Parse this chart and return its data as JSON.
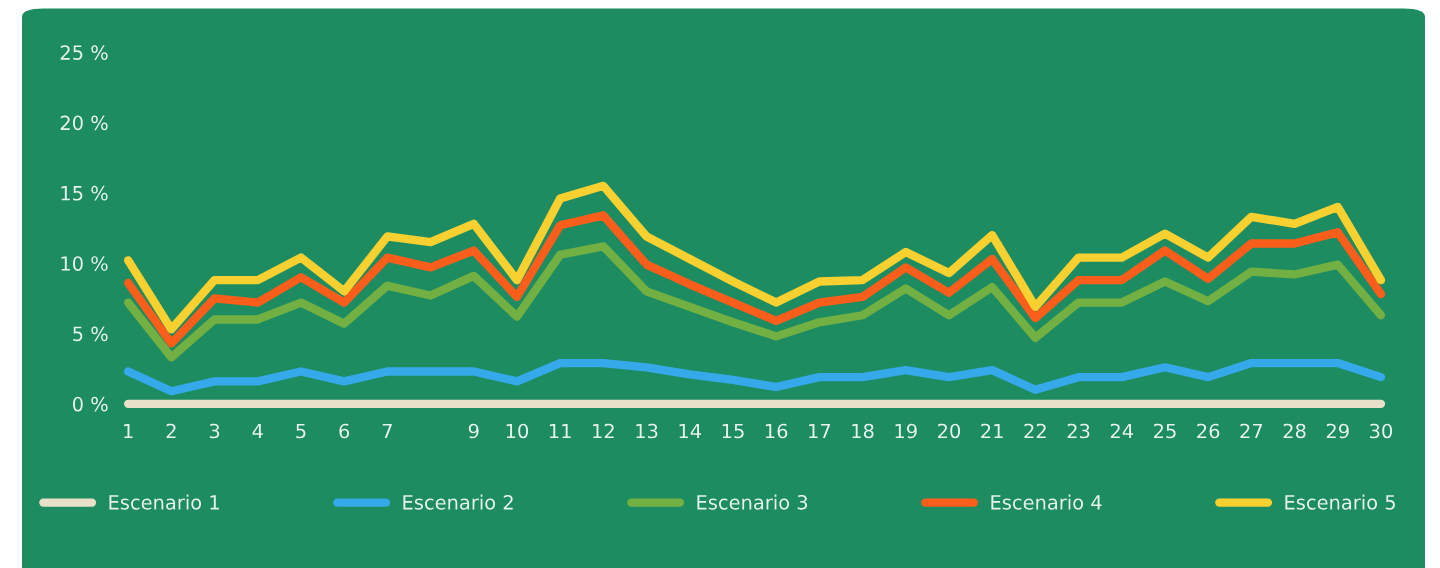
{
  "chart_data": {
    "type": "line",
    "x": [
      1,
      2,
      3,
      4,
      5,
      6,
      7,
      8,
      9,
      10,
      11,
      12,
      13,
      14,
      15,
      16,
      17,
      18,
      19,
      20,
      21,
      22,
      23,
      24,
      25,
      26,
      27,
      28,
      29,
      30
    ],
    "series": [
      {
        "name": "Escenario 1",
        "color": "#e8e0c8",
        "values": [
          0,
          0,
          0,
          0,
          0,
          0,
          0,
          0,
          0,
          0,
          0,
          0,
          0,
          0,
          0,
          0,
          0,
          0,
          0,
          0,
          0,
          0,
          0,
          0,
          0,
          0,
          0,
          0,
          0,
          0
        ]
      },
      {
        "name": "Escenario 2",
        "color": "#36a9ea",
        "values": [
          2.3,
          0.9,
          1.6,
          1.6,
          2.3,
          1.6,
          2.3,
          2.3,
          2.3,
          1.6,
          2.9,
          2.9,
          2.6,
          2.1,
          1.7,
          1.2,
          1.9,
          1.9,
          2.4,
          1.9,
          2.4,
          1.0,
          1.9,
          1.9,
          2.6,
          1.9,
          2.9,
          2.9,
          2.9,
          1.9
        ]
      },
      {
        "name": "Escenario 3",
        "color": "#72b043",
        "values": [
          7.2,
          3.3,
          6.0,
          6.0,
          7.2,
          5.7,
          8.4,
          7.7,
          9.1,
          6.2,
          10.6,
          11.2,
          8.0,
          6.9,
          5.8,
          4.8,
          5.8,
          6.3,
          8.2,
          6.3,
          8.3,
          4.7,
          7.2,
          7.2,
          8.7,
          7.3,
          9.4,
          9.2,
          9.9,
          6.3
        ]
      },
      {
        "name": "Escenario 4",
        "color": "#fb5d1a",
        "values": [
          8.6,
          4.3,
          7.5,
          7.2,
          9.0,
          7.2,
          10.4,
          9.7,
          10.9,
          7.6,
          12.7,
          13.4,
          9.9,
          8.5,
          7.2,
          5.9,
          7.2,
          7.6,
          9.7,
          7.9,
          10.3,
          6.1,
          8.8,
          8.8,
          10.9,
          8.9,
          11.4,
          11.4,
          12.2,
          7.8
        ]
      },
      {
        "name": "Escenario 5",
        "color": "#f8d030",
        "values": [
          10.2,
          5.3,
          8.8,
          8.8,
          10.4,
          8.0,
          11.9,
          11.5,
          12.8,
          8.8,
          14.6,
          15.5,
          11.9,
          10.3,
          8.7,
          7.2,
          8.7,
          8.8,
          10.8,
          9.3,
          12.0,
          6.9,
          10.4,
          10.4,
          12.1,
          10.4,
          13.3,
          12.8,
          14.0,
          8.8
        ]
      }
    ],
    "xlim": [
      1,
      30
    ],
    "xticks": [
      1,
      2,
      3,
      4,
      5,
      6,
      7,
      9,
      10,
      11,
      12,
      13,
      14,
      15,
      16,
      17,
      18,
      19,
      20,
      21,
      22,
      23,
      24,
      25,
      26,
      27,
      28,
      29,
      30
    ],
    "ylim": [
      0,
      25
    ],
    "yticks": [
      {
        "value": 0,
        "label": "0 %"
      },
      {
        "value": 5,
        "label": "5 %"
      },
      {
        "value": 10,
        "label": "10 %"
      },
      {
        "value": 15,
        "label": "15 %"
      },
      {
        "value": 20,
        "label": "20 %"
      },
      {
        "value": 25,
        "label": "25 %"
      }
    ],
    "grid": false,
    "legend": "bottom",
    "marker": "none",
    "line_style": "solid"
  }
}
